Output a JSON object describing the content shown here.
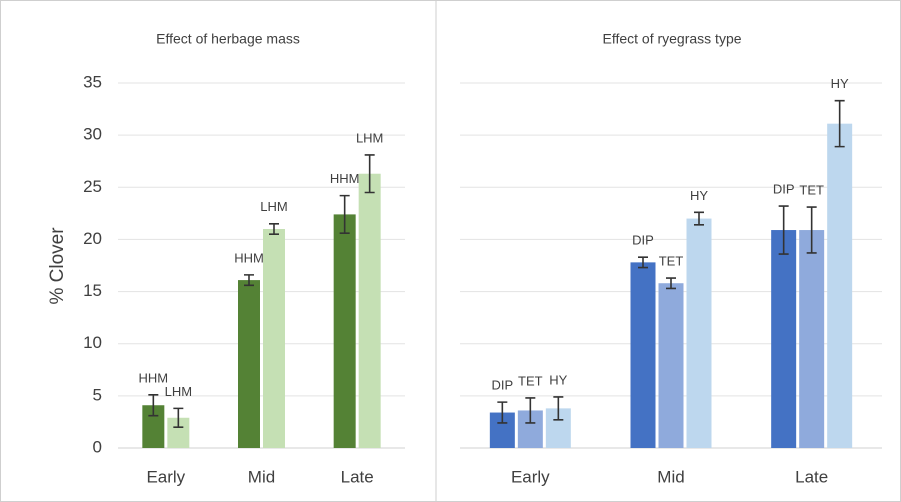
{
  "chart_data": [
    {
      "type": "bar",
      "title": "Effect of herbage mass",
      "ylabel": "% Clover",
      "categories": [
        "Early",
        "Mid",
        "Late"
      ],
      "series": [
        {
          "name": "HHM",
          "color": "#548235",
          "values": [
            4.1,
            16.1,
            22.4
          ],
          "errors": [
            1.0,
            0.5,
            1.8
          ]
        },
        {
          "name": "LHM",
          "color": "#c5e0b4",
          "values": [
            2.9,
            21.0,
            26.3
          ],
          "errors": [
            0.9,
            0.5,
            1.8
          ]
        }
      ],
      "ylim": [
        0,
        35
      ],
      "yticks": [
        0,
        5,
        10,
        15,
        20,
        25,
        30,
        35
      ],
      "grid": true,
      "y_tick_labels": true
    },
    {
      "type": "bar",
      "title": "Effect of ryegrass type",
      "categories": [
        "Early",
        "Mid",
        "Late"
      ],
      "series": [
        {
          "name": "DIP",
          "color": "#4472c4",
          "values": [
            3.4,
            17.8,
            20.9
          ],
          "errors": [
            1.0,
            0.5,
            2.3
          ]
        },
        {
          "name": "TET",
          "color": "#8faadc",
          "values": [
            3.6,
            15.8,
            20.9
          ],
          "errors": [
            1.2,
            0.5,
            2.2
          ]
        },
        {
          "name": "HY",
          "color": "#bdd7ee",
          "values": [
            3.8,
            22.0,
            31.1
          ],
          "errors": [
            1.1,
            0.6,
            2.2
          ]
        }
      ],
      "ylim": [
        0,
        35
      ],
      "yticks": [
        0,
        5,
        10,
        15,
        20,
        25,
        30,
        35
      ],
      "grid": true,
      "y_tick_labels": false
    }
  ]
}
